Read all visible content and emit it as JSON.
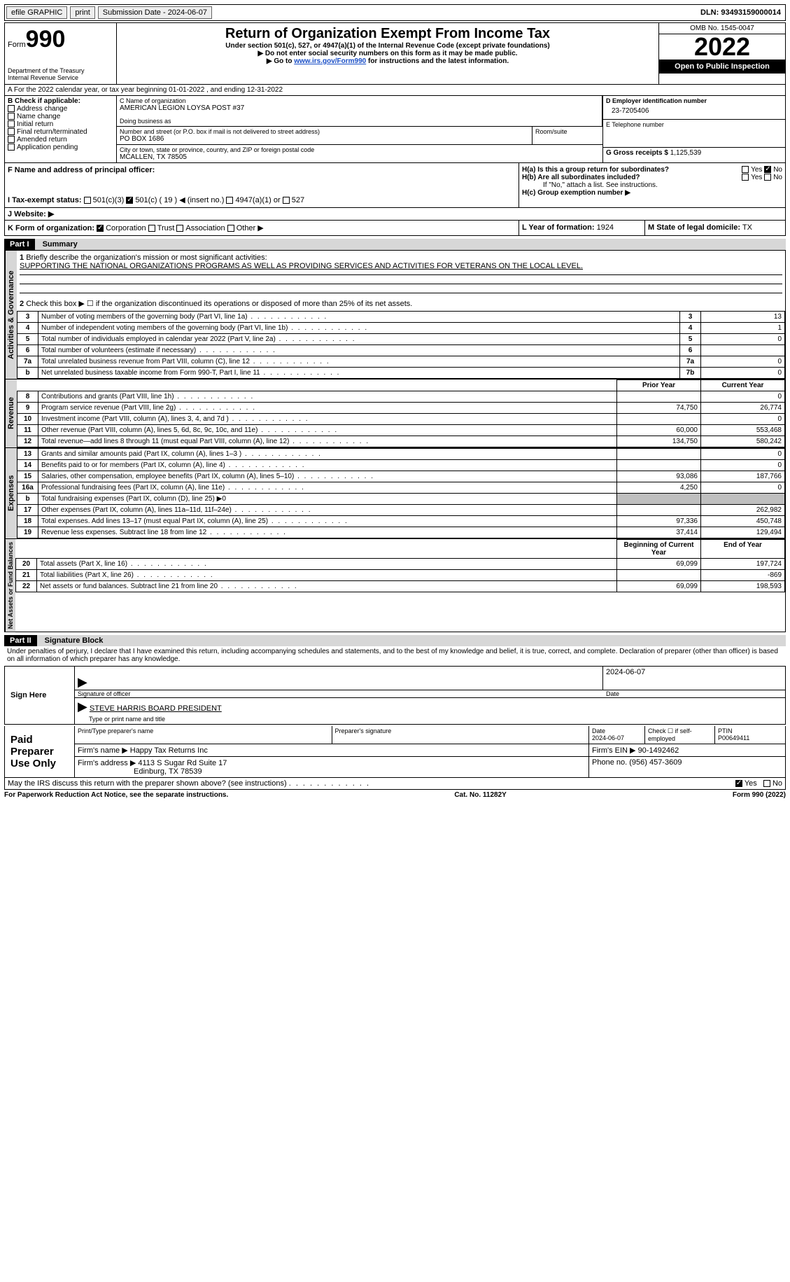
{
  "topbar": {
    "efile": "efile GRAPHIC",
    "print": "print",
    "submission_label": "Submission Date - 2024-06-07",
    "dln_label": "DLN: 93493159000014"
  },
  "header": {
    "form_word": "Form",
    "form_num": "990",
    "dept": "Department of the Treasury",
    "irs": "Internal Revenue Service",
    "title": "Return of Organization Exempt From Income Tax",
    "sub1": "Under section 501(c), 527, or 4947(a)(1) of the Internal Revenue Code (except private foundations)",
    "sub2": "▶ Do not enter social security numbers on this form as it may be made public.",
    "sub3_pre": "▶ Go to ",
    "sub3_link": "www.irs.gov/Form990",
    "sub3_post": " for instructions and the latest information.",
    "omb": "OMB No. 1545-0047",
    "year": "2022",
    "open": "Open to Public Inspection"
  },
  "lineA": "A For the 2022 calendar year, or tax year beginning 01-01-2022    , and ending 12-31-2022",
  "boxB": {
    "title": "B Check if applicable:",
    "items": [
      "Address change",
      "Name change",
      "Initial return",
      "Final return/terminated",
      "Amended return",
      "Application pending"
    ]
  },
  "boxC": {
    "name_label": "C Name of organization",
    "name": "AMERICAN LEGION LOYSA POST #37",
    "dba_label": "Doing business as",
    "addr_label": "Number and street (or P.O. box if mail is not delivered to street address)",
    "room_label": "Room/suite",
    "addr": "PO BOX 1686",
    "city_label": "City or town, state or province, country, and ZIP or foreign postal code",
    "city": "MCALLEN, TX  78505"
  },
  "boxD": {
    "label": "D Employer identification number",
    "value": "23-7205406"
  },
  "boxE": {
    "label": "E Telephone number",
    "value": ""
  },
  "boxG": {
    "label": "G Gross receipts $",
    "value": "1,125,539"
  },
  "boxF": {
    "label": "F  Name and address of principal officer:",
    "value": ""
  },
  "boxH": {
    "ha": "H(a)  Is this a group return for subordinates?",
    "hb": "H(b)  Are all subordinates included?",
    "hb_note": "If \"No,\" attach a list. See instructions.",
    "hc": "H(c)  Group exemption number ▶",
    "yes": "Yes",
    "no": "No"
  },
  "boxI": {
    "label": "I  Tax-exempt status:",
    "c3": "501(c)(3)",
    "c": "501(c) ( 19 ) ◀ (insert no.)",
    "a1": "4947(a)(1) or",
    "s527": "527"
  },
  "boxJ": {
    "label": "J  Website: ▶",
    "value": ""
  },
  "boxK": {
    "label": "K Form of organization:",
    "corp": "Corporation",
    "trust": "Trust",
    "assoc": "Association",
    "other": "Other ▶"
  },
  "boxL": {
    "label": "L Year of formation:",
    "value": "1924"
  },
  "boxM": {
    "label": "M State of legal domicile:",
    "value": "TX"
  },
  "part1": {
    "title": "Part I",
    "heading": "Summary",
    "line1_label": "Briefly describe the organization's mission or most significant activities:",
    "line1_text": "SUPPORTING THE NATIONAL ORGANIZATIONS PROGRAMS AS WELL AS PROVIDING SERVICES AND ACTIVITIES FOR VETERANS ON THE LOCAL LEVEL.",
    "line2": "Check this box ▶ ☐ if the organization discontinued its operations or disposed of more than 25% of its net assets.",
    "sideA": "Activities & Governance",
    "sideR": "Revenue",
    "sideE": "Expenses",
    "sideN": "Net Assets or Fund Balances",
    "rows_ag": [
      {
        "n": "3",
        "t": "Number of voting members of the governing body (Part VI, line 1a)",
        "b": "3",
        "v": "13"
      },
      {
        "n": "4",
        "t": "Number of independent voting members of the governing body (Part VI, line 1b)",
        "b": "4",
        "v": "1"
      },
      {
        "n": "5",
        "t": "Total number of individuals employed in calendar year 2022 (Part V, line 2a)",
        "b": "5",
        "v": "0"
      },
      {
        "n": "6",
        "t": "Total number of volunteers (estimate if necessary)",
        "b": "6",
        "v": ""
      },
      {
        "n": "7a",
        "t": "Total unrelated business revenue from Part VIII, column (C), line 12",
        "b": "7a",
        "v": "0"
      },
      {
        "n": "b",
        "t": "Net unrelated business taxable income from Form 990-T, Part I, line 11",
        "b": "7b",
        "v": "0"
      }
    ],
    "hdr_prior": "Prior Year",
    "hdr_curr": "Current Year",
    "rows_rev": [
      {
        "n": "8",
        "t": "Contributions and grants (Part VIII, line 1h)",
        "p": "",
        "c": "0"
      },
      {
        "n": "9",
        "t": "Program service revenue (Part VIII, line 2g)",
        "p": "74,750",
        "c": "26,774"
      },
      {
        "n": "10",
        "t": "Investment income (Part VIII, column (A), lines 3, 4, and 7d )",
        "p": "",
        "c": "0"
      },
      {
        "n": "11",
        "t": "Other revenue (Part VIII, column (A), lines 5, 6d, 8c, 9c, 10c, and 11e)",
        "p": "60,000",
        "c": "553,468"
      },
      {
        "n": "12",
        "t": "Total revenue—add lines 8 through 11 (must equal Part VIII, column (A), line 12)",
        "p": "134,750",
        "c": "580,242"
      }
    ],
    "rows_exp": [
      {
        "n": "13",
        "t": "Grants and similar amounts paid (Part IX, column (A), lines 1–3 )",
        "p": "",
        "c": "0"
      },
      {
        "n": "14",
        "t": "Benefits paid to or for members (Part IX, column (A), line 4)",
        "p": "",
        "c": "0"
      },
      {
        "n": "15",
        "t": "Salaries, other compensation, employee benefits (Part IX, column (A), lines 5–10)",
        "p": "93,086",
        "c": "187,766"
      },
      {
        "n": "16a",
        "t": "Professional fundraising fees (Part IX, column (A), line 11e)",
        "p": "4,250",
        "c": "0"
      },
      {
        "n": "b",
        "t": "Total fundraising expenses (Part IX, column (D), line 25) ▶0",
        "p": "SHADE",
        "c": "SHADE"
      },
      {
        "n": "17",
        "t": "Other expenses (Part IX, column (A), lines 11a–11d, 11f–24e)",
        "p": "",
        "c": "262,982"
      },
      {
        "n": "18",
        "t": "Total expenses. Add lines 13–17 (must equal Part IX, column (A), line 25)",
        "p": "97,336",
        "c": "450,748"
      },
      {
        "n": "19",
        "t": "Revenue less expenses. Subtract line 18 from line 12",
        "p": "37,414",
        "c": "129,494"
      }
    ],
    "hdr_beg": "Beginning of Current Year",
    "hdr_end": "End of Year",
    "rows_net": [
      {
        "n": "20",
        "t": "Total assets (Part X, line 16)",
        "p": "69,099",
        "c": "197,724"
      },
      {
        "n": "21",
        "t": "Total liabilities (Part X, line 26)",
        "p": "",
        "c": "-869"
      },
      {
        "n": "22",
        "t": "Net assets or fund balances. Subtract line 21 from line 20",
        "p": "69,099",
        "c": "198,593"
      }
    ]
  },
  "part2": {
    "title": "Part II",
    "heading": "Signature Block",
    "penalties": "Under penalties of perjury, I declare that I have examined this return, including accompanying schedules and statements, and to the best of my knowledge and belief, it is true, correct, and complete. Declaration of preparer (other than officer) is based on all information of which preparer has any knowledge.",
    "sign_here": "Sign Here",
    "sig_officer": "Signature of officer",
    "sig_date": "Date",
    "sig_date_val": "2024-06-07",
    "officer_name": "STEVE HARRIS  BOARD PRESIDENT",
    "type_name": "Type or print name and title",
    "paid": "Paid Preparer Use Only",
    "prep_name_label": "Print/Type preparer's name",
    "prep_sig_label": "Preparer's signature",
    "date_label": "Date",
    "date_val": "2024-06-07",
    "check_label": "Check ☐ if self-employed",
    "ptin_label": "PTIN",
    "ptin_val": "P00649411",
    "firm_name_label": "Firm's name    ▶",
    "firm_name": "Happy Tax Returns Inc",
    "firm_ein_label": "Firm's EIN ▶",
    "firm_ein": "90-1492462",
    "firm_addr_label": "Firm's address ▶",
    "firm_addr1": "4113 S Sugar Rd Suite 17",
    "firm_addr2": "Edinburg, TX  78539",
    "phone_label": "Phone no.",
    "phone": "(956) 457-3609",
    "may_irs": "May the IRS discuss this return with the preparer shown above? (see instructions)",
    "yes": "Yes",
    "no": "No"
  },
  "footer": {
    "left": "For Paperwork Reduction Act Notice, see the separate instructions.",
    "mid": "Cat. No. 11282Y",
    "right": "Form 990 (2022)"
  }
}
